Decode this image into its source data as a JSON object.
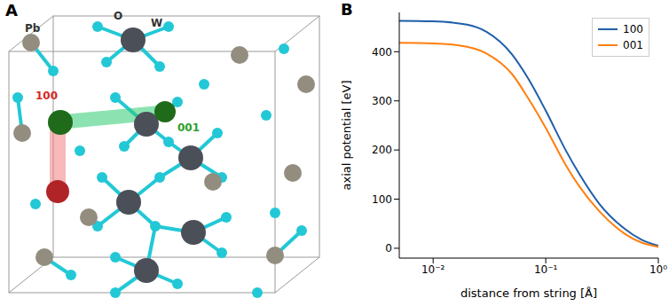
{
  "panel_labels": [
    "A",
    "B"
  ],
  "structure": {
    "atom_labels": [
      "Pb",
      "O",
      "W"
    ],
    "direction_labels": [
      {
        "text": "100",
        "color": "#d62728"
      },
      {
        "text": "001",
        "color": "#2ca02c"
      }
    ]
  },
  "chart_data": {
    "type": "line",
    "x_label": "distance from string [Å]",
    "y_label": "axial potential [eV]",
    "log": "x",
    "grid": false,
    "legend": "upper right",
    "x": [
      0.005,
      0.01,
      0.02,
      0.03,
      0.05,
      0.07,
      0.1,
      0.15,
      0.2,
      0.3,
      0.5,
      0.7,
      1.0
    ],
    "series": [
      {
        "name": "100",
        "color": "#1f5fa8",
        "values": [
          463,
          462,
          455,
          440,
          395,
          345,
          280,
          200,
          150,
          90,
          40,
          18,
          5
        ]
      },
      {
        "name": "001",
        "color": "#ff7f0e",
        "values": [
          418,
          417,
          410,
          396,
          355,
          305,
          245,
          170,
          125,
          75,
          30,
          12,
          3
        ]
      }
    ],
    "xlim": [
      0.005,
      1
    ],
    "xticks": [
      {
        "value": 0.01,
        "label": "10⁻²"
      },
      {
        "value": 0.1,
        "label": "10⁻¹"
      },
      {
        "value": 1,
        "label": "10⁰"
      }
    ],
    "ylim": [
      -20,
      480
    ],
    "yticks": [
      0,
      100,
      200,
      300,
      400
    ]
  }
}
